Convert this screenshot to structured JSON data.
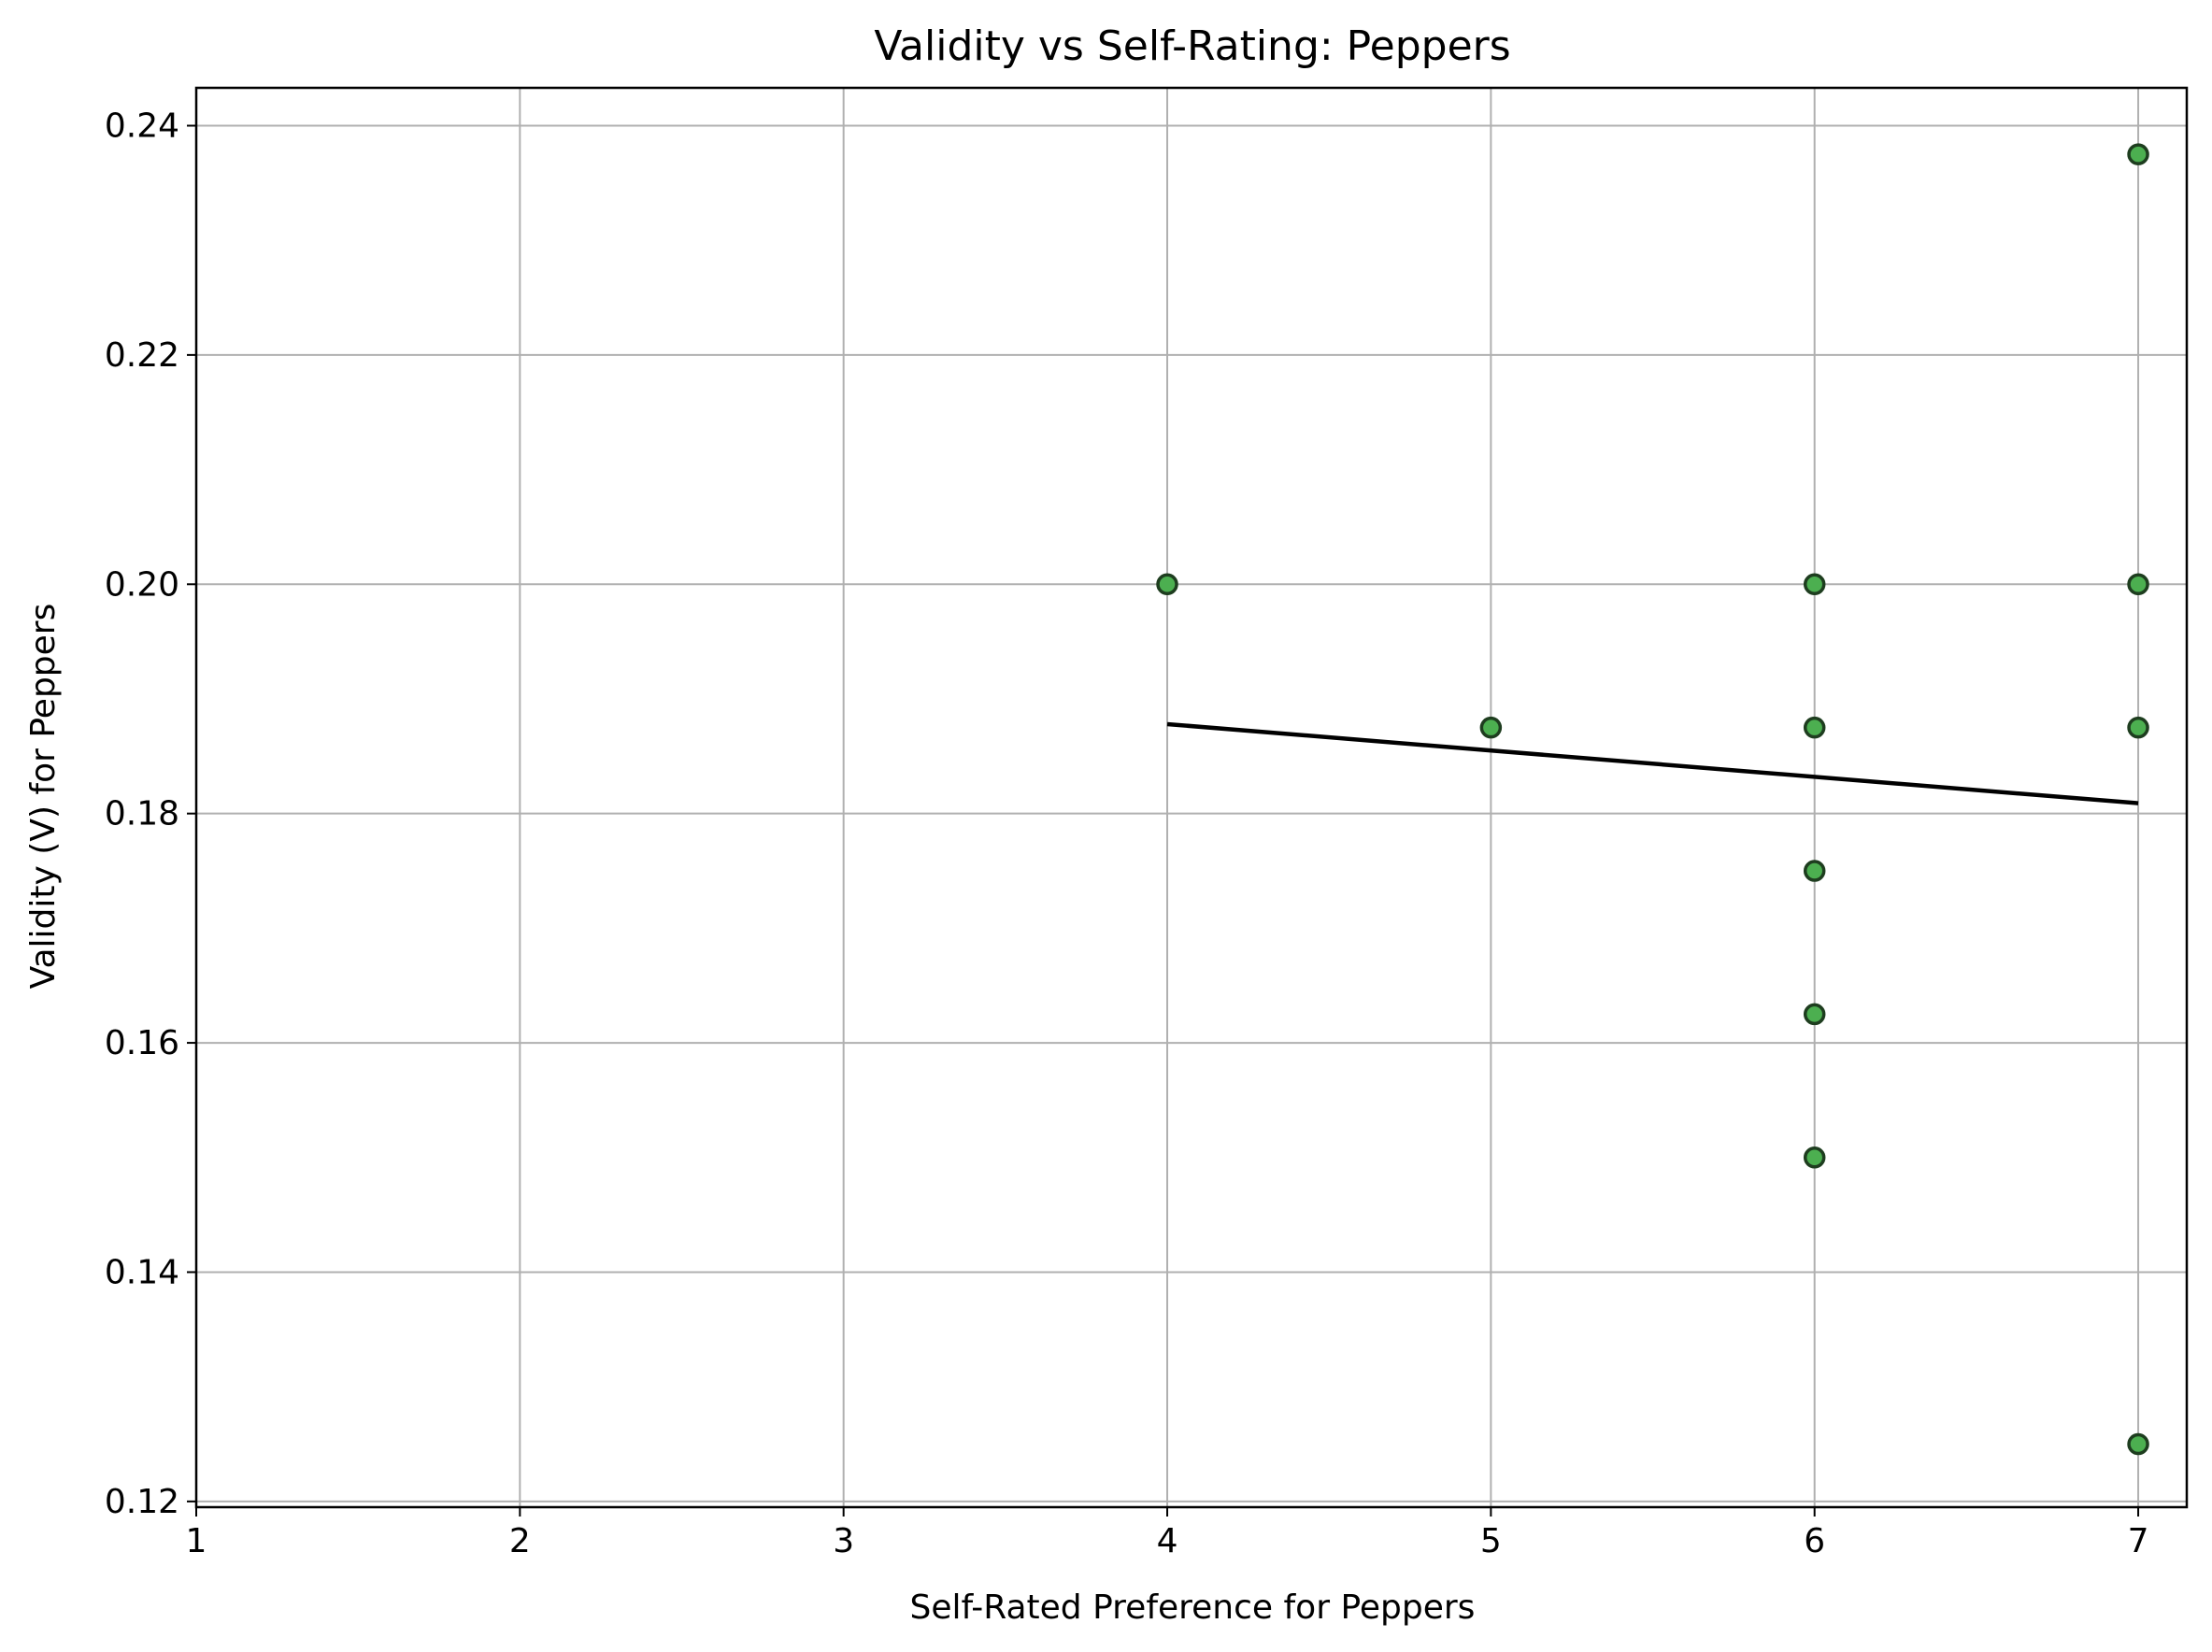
{
  "chart_data": {
    "type": "scatter",
    "title": "Validity vs Self-Rating: Peppers",
    "xlabel": "Self-Rated Preference for Peppers",
    "ylabel": "Validity (V) for Peppers",
    "xlim": [
      1,
      7.15
    ],
    "ylim": [
      0.1195,
      0.2433
    ],
    "xticks": [
      1,
      2,
      3,
      4,
      5,
      6,
      7
    ],
    "xtick_labels": [
      "1",
      "2",
      "3",
      "4",
      "5",
      "6",
      "7"
    ],
    "yticks": [
      0.12,
      0.14,
      0.16,
      0.18,
      0.2,
      0.22,
      0.24
    ],
    "ytick_labels": [
      "0.12",
      "0.14",
      "0.16",
      "0.18",
      "0.20",
      "0.22",
      "0.24"
    ],
    "grid": true,
    "points": [
      {
        "x": 4,
        "y": 0.2
      },
      {
        "x": 5,
        "y": 0.1875
      },
      {
        "x": 6,
        "y": 0.2
      },
      {
        "x": 6,
        "y": 0.1875
      },
      {
        "x": 6,
        "y": 0.175
      },
      {
        "x": 6,
        "y": 0.1625
      },
      {
        "x": 6,
        "y": 0.15
      },
      {
        "x": 7,
        "y": 0.2375
      },
      {
        "x": 7,
        "y": 0.2
      },
      {
        "x": 7,
        "y": 0.1875
      },
      {
        "x": 7,
        "y": 0.125
      }
    ],
    "trendline": {
      "x": [
        4,
        7
      ],
      "y": [
        0.1878,
        0.1809
      ]
    },
    "colors": {
      "marker_fill": "#4caf50",
      "marker_edge": "#1e3d1f",
      "trendline": "#000000",
      "grid": "#b0b0b0"
    }
  }
}
